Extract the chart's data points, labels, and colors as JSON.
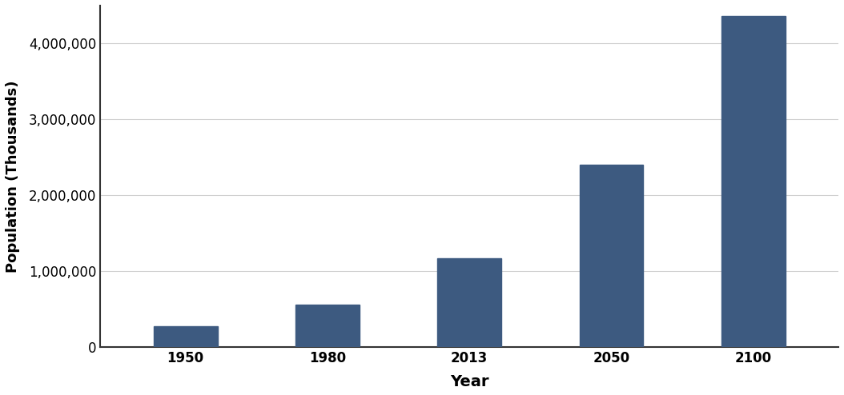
{
  "categories": [
    "1950",
    "1980",
    "2013",
    "2050",
    "2100"
  ],
  "values": [
    280000,
    554000,
    1170000,
    2400000,
    4360000
  ],
  "bar_color": "#3d5a80",
  "xlabel": "Year",
  "ylabel": "Population (Thousands)",
  "xlabel_fontsize": 14,
  "ylabel_fontsize": 13,
  "tick_fontsize": 12,
  "ylim": [
    0,
    4500000
  ],
  "yticks": [
    0,
    1000000,
    2000000,
    3000000,
    4000000
  ],
  "background_color": "#ffffff",
  "grid_color": "#d0d0d0",
  "bar_width": 0.45
}
